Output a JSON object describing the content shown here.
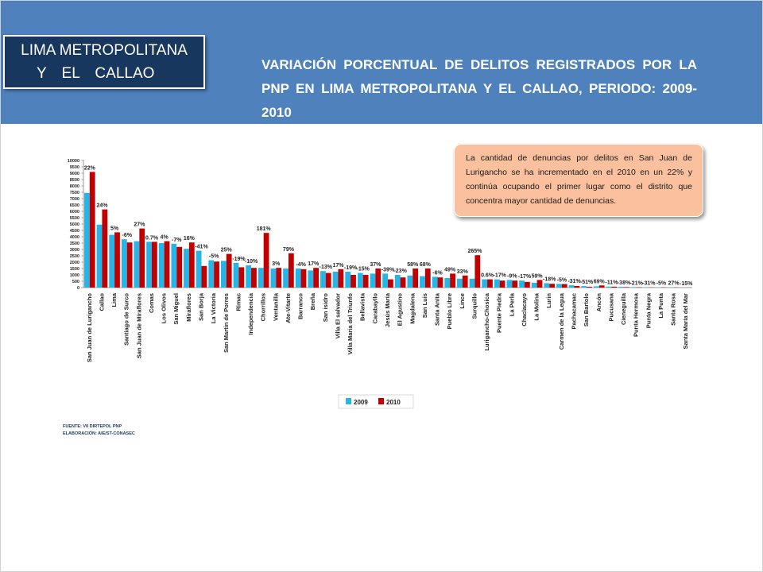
{
  "header": {
    "region_line1": "LIMA METROPOLITANA",
    "region_line2": "Y EL CALLAO",
    "title": "VARIACIÓN PORCENTUAL DE DELITOS REGISTRADOS POR LA PNP EN LIMA METROPOLITANA Y EL CALLAO, PERIODO: 2009-2010"
  },
  "callout": {
    "text": "La cantidad de denuncias por delitos en San Juan de Lurigancho se ha incrementado en el 2010 en un 22% y continúa ocupando el primer lugar como el distrito que concentra mayor cantidad de denuncias."
  },
  "source": {
    "fuente": "FUENTE: VII DIRTEPOL PNP",
    "elaboracion": "ELABORACIÓN: AIE/ST-CONASEC"
  },
  "colors": {
    "header_band": "#4f81bd",
    "region_box": "#17375e",
    "series_2009": "#27b4e6",
    "series_2010": "#c00000",
    "callout_fill": "#fbc19e"
  },
  "chart_data": {
    "type": "bar",
    "title": "",
    "xlabel": "",
    "ylabel": "",
    "ylim": [
      0,
      10000
    ],
    "yticks": [
      0,
      500,
      1000,
      1500,
      2000,
      2500,
      3000,
      3500,
      4000,
      4500,
      5000,
      5500,
      6000,
      6500,
      7000,
      7500,
      8000,
      8500,
      9000,
      9500,
      10000
    ],
    "grid": false,
    "legend": "bottom-center",
    "categories": [
      "San Juan de Lurigancho",
      "Callao",
      "Lima",
      "Santiago de Surco",
      "San Juan de Miraflores",
      "Comas",
      "Los Olivos",
      "San Miguel",
      "Miraflores",
      "San Borja",
      "La Victoria",
      "San Martin de Porres",
      "Rimac",
      "Independencia",
      "Chorrillos",
      "Ventanilla",
      "Ate-Vitarte",
      "Barranco",
      "Breña",
      "San isidro",
      "Villa El salvador",
      "Villa Maria del Triunfo",
      "Bellavista",
      "Carabayllo",
      "Jesús María",
      "El Agustino",
      "Magdalena",
      "San Luis",
      "Santa Anita",
      "Pueblo Libre",
      "Lince",
      "Surquillo",
      "Lurigancho-Chosica",
      "Puente Piedra",
      "La Perla",
      "Chaclacayo",
      "La Molina",
      "Lurin",
      "Carmen de la Legua",
      "Pachacamac",
      "San Bartolo",
      "Ancón",
      "Pucusana",
      "Cieneguilla",
      "Punta Hermosa",
      "Punta Negra",
      "La Punta",
      "Santa Rosa",
      "Santa María del Mar"
    ],
    "labels": [
      "22%",
      "24%",
      "5%",
      "-6%",
      "27%",
      "0.7%",
      "4%",
      "-7%",
      "16%",
      "-41%",
      "-5%",
      "25%",
      "-19%",
      "-10%",
      "181%",
      "3%",
      "79%",
      "-4%",
      "17%",
      "-13%",
      "17%",
      "-19%",
      "-15%",
      "37%",
      "-39%",
      "-23%",
      "58%",
      "68%",
      "-6%",
      "49%",
      "33%",
      "265%",
      "0.6%",
      "-17%",
      "-9%",
      "-17%",
      "59%",
      "-18%",
      "-5%",
      "-31%",
      "-51%",
      "69%",
      "-11%",
      "-38%",
      "-21%",
      "-31%",
      "-5%",
      "27%",
      "-15%"
    ],
    "series": [
      {
        "name": "2009",
        "values": [
          7450,
          4950,
          4150,
          3800,
          3650,
          3600,
          3500,
          3450,
          3050,
          2900,
          2150,
          2100,
          1950,
          1750,
          1550,
          1500,
          1500,
          1500,
          1350,
          1300,
          1250,
          1250,
          1150,
          1100,
          1100,
          1000,
          950,
          900,
          850,
          750,
          700,
          700,
          650,
          650,
          600,
          550,
          380,
          350,
          290,
          180,
          120,
          100,
          80,
          60,
          40,
          30,
          25,
          15,
          10
        ]
      },
      {
        "name": "2010",
        "values": [
          9100,
          6150,
          4350,
          3550,
          4650,
          3600,
          3650,
          3200,
          3550,
          1700,
          2050,
          2650,
          1600,
          1550,
          4300,
          1550,
          2700,
          1450,
          1550,
          1150,
          1450,
          1000,
          1000,
          1500,
          650,
          800,
          1500,
          1500,
          800,
          1100,
          950,
          2550,
          650,
          550,
          550,
          450,
          600,
          300,
          280,
          125,
          60,
          170,
          70,
          40,
          30,
          20,
          24,
          19,
          8
        ]
      }
    ]
  }
}
